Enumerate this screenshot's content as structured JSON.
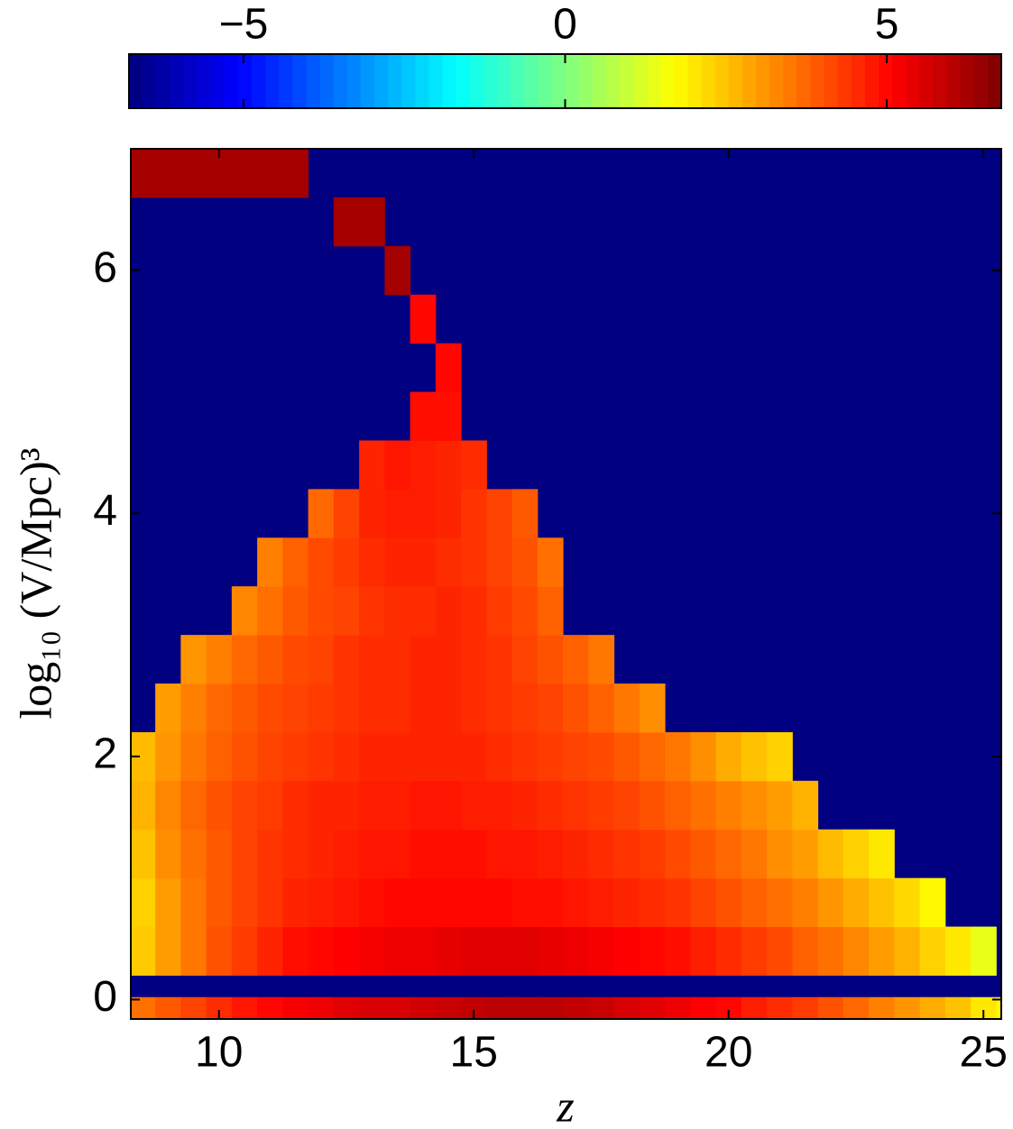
{
  "chart_data": {
    "type": "heatmap",
    "xlabel": "z",
    "ylabel": "log₁₀ (V/Mpc)³",
    "colormap": "jet",
    "clim": [
      -6.78,
      6.78
    ],
    "cticks": [
      {
        "value": -5,
        "label": "−5"
      },
      0,
      5
    ],
    "xlim": [
      8.27,
      25.35
    ],
    "ylim": [
      -0.16,
      7.0
    ],
    "xticks": [
      10,
      15,
      20,
      25
    ],
    "yticks": [
      0,
      2,
      4,
      6
    ],
    "xbins": [
      8.25,
      8.75,
      9.25,
      9.75,
      10.25,
      10.75,
      11.25,
      11.75,
      12.25,
      12.75,
      13.25,
      13.75,
      14.25,
      14.75,
      15.25,
      15.75,
      16.25,
      16.75,
      17.25,
      17.75,
      18.25,
      18.75,
      19.25,
      19.75,
      20.25,
      20.75,
      21.25,
      21.75,
      22.25,
      22.75,
      23.25,
      23.75,
      24.25,
      24.75,
      25.25,
      25.75
    ],
    "ybins": [
      -0.16,
      0.02,
      0.2,
      0.6,
      1.0,
      1.4,
      1.8,
      2.2,
      2.6,
      3.0,
      3.4,
      3.8,
      4.2,
      4.6,
      5.0,
      5.4,
      5.8,
      6.2,
      6.6,
      7.0
    ],
    "z": [
      [
        3.6,
        3.9,
        4.2,
        4.5,
        4.8,
        5.0,
        5.2,
        5.3,
        5.5,
        5.6,
        5.6,
        5.7,
        5.8,
        5.9,
        6.0,
        6.0,
        6.0,
        5.9,
        5.8,
        5.6,
        5.5,
        5.3,
        5.1,
        5.0,
        4.7,
        4.5,
        4.3,
        4.0,
        3.7,
        3.4,
        3.1,
        2.8,
        2.5,
        2.0,
        1.8
      ],
      [
        null,
        null,
        null,
        null,
        null,
        null,
        null,
        null,
        null,
        null,
        null,
        null,
        null,
        null,
        null,
        null,
        null,
        null,
        null,
        null,
        null,
        null,
        null,
        null,
        null,
        null,
        null,
        null,
        null,
        null,
        null,
        null,
        null,
        null,
        null
      ],
      [
        2.4,
        3.0,
        3.5,
        4.0,
        4.3,
        4.6,
        4.9,
        5.0,
        5.1,
        5.2,
        5.3,
        5.3,
        5.4,
        5.5,
        5.5,
        5.5,
        5.4,
        5.3,
        5.2,
        5.1,
        5.0,
        4.9,
        4.7,
        4.5,
        4.3,
        4.1,
        3.8,
        3.6,
        3.3,
        3.0,
        2.7,
        2.3,
        2.0,
        1.4,
        null
      ],
      [
        2.3,
        3.0,
        3.5,
        3.9,
        4.2,
        4.4,
        4.6,
        4.7,
        4.8,
        4.9,
        5.0,
        5.0,
        5.0,
        5.0,
        5.0,
        4.9,
        4.9,
        4.8,
        4.7,
        4.6,
        4.5,
        4.4,
        4.2,
        4.0,
        3.8,
        3.6,
        3.4,
        3.1,
        2.8,
        2.5,
        2.2,
        1.8,
        null,
        null,
        null
      ],
      [
        2.5,
        3.2,
        3.6,
        3.9,
        4.2,
        4.4,
        4.5,
        4.6,
        4.7,
        4.8,
        4.8,
        4.9,
        4.9,
        4.9,
        4.8,
        4.8,
        4.7,
        4.6,
        4.5,
        4.4,
        4.3,
        4.1,
        3.9,
        3.7,
        3.5,
        3.2,
        3.0,
        2.6,
        2.3,
        2.0,
        null,
        null,
        null,
        null,
        null
      ],
      [
        2.7,
        3.3,
        3.7,
        4.0,
        4.2,
        4.3,
        4.5,
        4.6,
        4.6,
        4.7,
        4.7,
        4.8,
        4.8,
        4.7,
        4.7,
        4.6,
        4.5,
        4.4,
        4.3,
        4.2,
        4.0,
        3.8,
        3.6,
        3.4,
        3.2,
        3.0,
        2.7,
        null,
        null,
        null,
        null,
        null,
        null,
        null,
        null
      ],
      [
        2.6,
        3.1,
        3.5,
        3.8,
        4.0,
        4.2,
        4.3,
        4.4,
        4.5,
        4.6,
        4.6,
        4.6,
        4.6,
        4.6,
        4.5,
        4.4,
        4.3,
        4.2,
        4.1,
        3.9,
        3.7,
        3.5,
        3.2,
        2.8,
        2.5,
        2.3,
        null,
        null,
        null,
        null,
        null,
        null,
        null,
        null,
        null
      ],
      [
        null,
        3.0,
        3.4,
        3.7,
        3.9,
        4.1,
        4.2,
        4.3,
        4.4,
        4.5,
        4.5,
        4.6,
        4.6,
        4.5,
        4.4,
        4.3,
        4.2,
        4.0,
        3.8,
        3.5,
        3.2,
        null,
        null,
        null,
        null,
        null,
        null,
        null,
        null,
        null,
        null,
        null,
        null,
        null,
        null
      ],
      [
        null,
        null,
        3.1,
        3.4,
        3.7,
        3.9,
        4.1,
        4.2,
        4.4,
        4.5,
        4.5,
        4.6,
        4.6,
        4.5,
        4.4,
        4.2,
        4.0,
        3.8,
        3.5,
        null,
        null,
        null,
        null,
        null,
        null,
        null,
        null,
        null,
        null,
        null,
        null,
        null,
        null,
        null,
        null
      ],
      [
        null,
        null,
        null,
        null,
        3.3,
        3.6,
        3.9,
        4.1,
        4.2,
        4.4,
        4.5,
        4.5,
        4.6,
        4.5,
        4.3,
        4.1,
        3.8,
        null,
        null,
        null,
        null,
        null,
        null,
        null,
        null,
        null,
        null,
        null,
        null,
        null,
        null,
        null,
        null,
        null,
        null
      ],
      [
        null,
        null,
        null,
        null,
        null,
        3.4,
        3.8,
        4.1,
        4.3,
        4.5,
        4.6,
        4.6,
        4.5,
        4.4,
        4.2,
        4.0,
        3.6,
        null,
        null,
        null,
        null,
        null,
        null,
        null,
        null,
        null,
        null,
        null,
        null,
        null,
        null,
        null,
        null,
        null,
        null
      ],
      [
        null,
        null,
        null,
        null,
        null,
        null,
        null,
        3.7,
        4.2,
        4.6,
        4.7,
        4.7,
        4.6,
        4.4,
        4.2,
        3.9,
        null,
        null,
        null,
        null,
        null,
        null,
        null,
        null,
        null,
        null,
        null,
        null,
        null,
        null,
        null,
        null,
        null,
        null,
        null
      ],
      [
        null,
        null,
        null,
        null,
        null,
        null,
        null,
        null,
        null,
        4.6,
        4.8,
        4.7,
        4.6,
        4.5,
        null,
        null,
        null,
        null,
        null,
        null,
        null,
        null,
        null,
        null,
        null,
        null,
        null,
        null,
        null,
        null,
        null,
        null,
        null,
        null,
        null
      ],
      [
        null,
        null,
        null,
        null,
        null,
        null,
        null,
        null,
        null,
        null,
        null,
        4.9,
        4.9,
        null,
        null,
        null,
        null,
        null,
        null,
        null,
        null,
        null,
        null,
        null,
        null,
        null,
        null,
        null,
        null,
        null,
        null,
        null,
        null,
        null,
        null
      ],
      [
        null,
        null,
        null,
        null,
        null,
        null,
        null,
        null,
        null,
        null,
        null,
        null,
        5.0,
        null,
        null,
        null,
        null,
        null,
        null,
        null,
        null,
        null,
        null,
        null,
        null,
        null,
        null,
        null,
        null,
        null,
        null,
        null,
        null,
        null,
        null
      ],
      [
        null,
        null,
        null,
        null,
        null,
        null,
        null,
        null,
        null,
        null,
        null,
        5.0,
        null,
        null,
        null,
        null,
        null,
        null,
        null,
        null,
        null,
        null,
        null,
        null,
        null,
        null,
        null,
        null,
        null,
        null,
        null,
        null,
        null,
        null,
        null
      ],
      [
        null,
        null,
        null,
        null,
        null,
        null,
        null,
        null,
        null,
        null,
        6.3,
        null,
        null,
        null,
        null,
        null,
        null,
        null,
        null,
        null,
        null,
        null,
        null,
        null,
        null,
        null,
        null,
        null,
        null,
        null,
        null,
        null,
        null,
        null,
        null
      ],
      [
        null,
        null,
        null,
        null,
        null,
        null,
        null,
        null,
        6.3,
        6.3,
        null,
        null,
        null,
        null,
        null,
        null,
        null,
        null,
        null,
        null,
        null,
        null,
        null,
        null,
        null,
        null,
        null,
        null,
        null,
        null,
        null,
        null,
        null,
        null,
        null
      ],
      [
        6.3,
        6.3,
        6.3,
        6.3,
        6.3,
        6.3,
        6.3,
        null,
        null,
        null,
        null,
        null,
        null,
        null,
        null,
        null,
        null,
        null,
        null,
        null,
        null,
        null,
        null,
        null,
        null,
        null,
        null,
        null,
        null,
        null,
        null,
        null,
        null,
        null,
        null
      ]
    ]
  }
}
